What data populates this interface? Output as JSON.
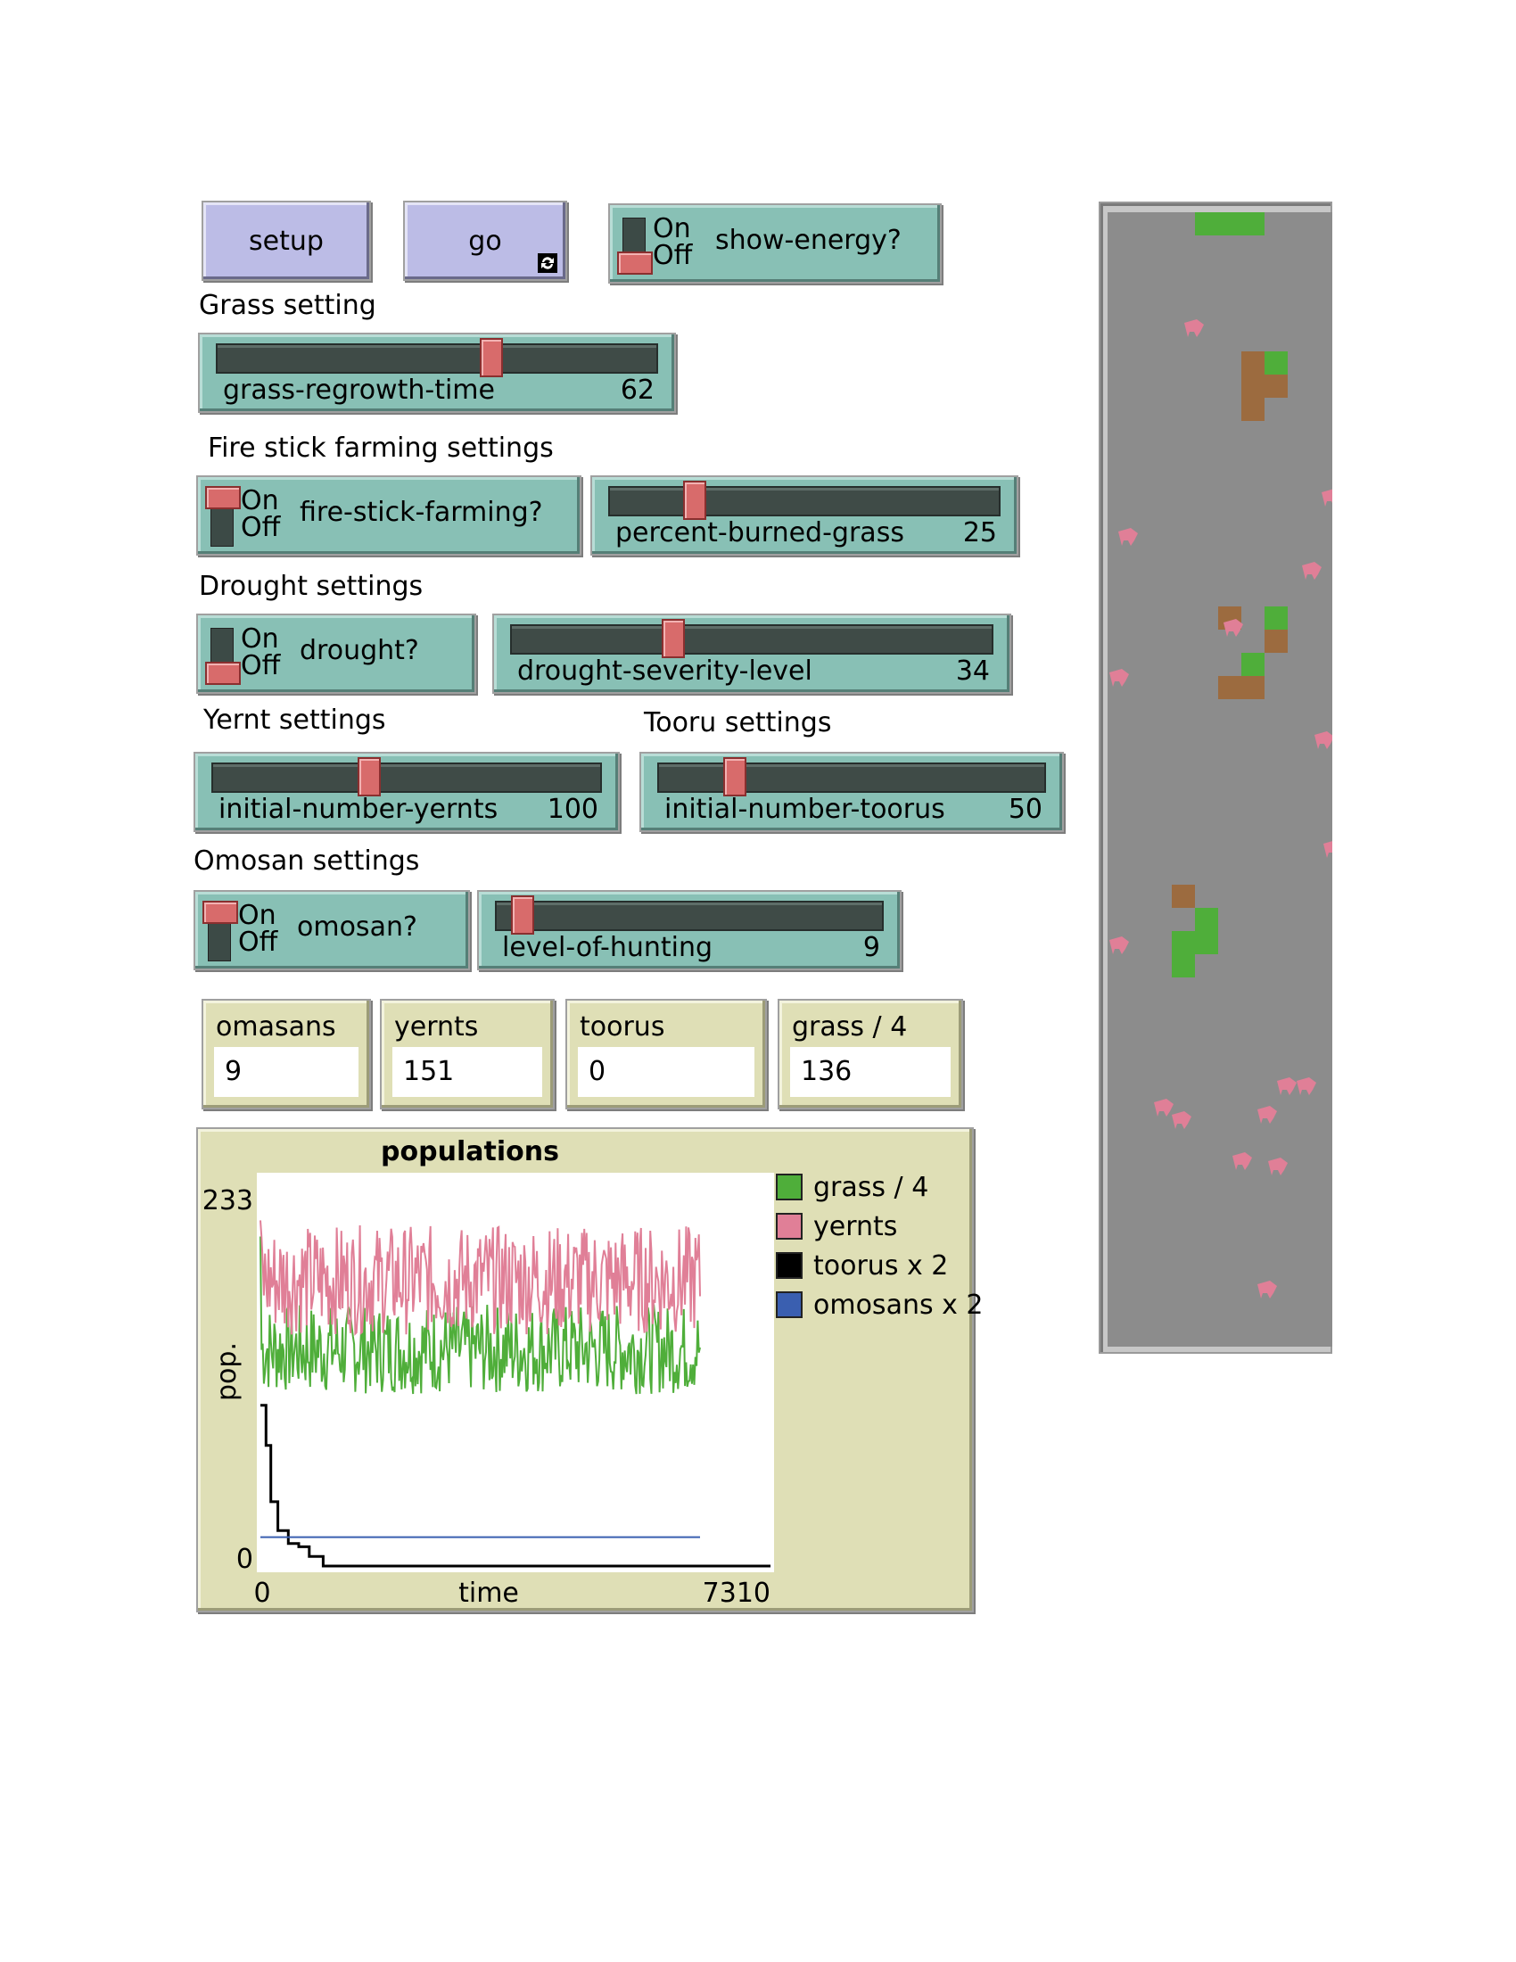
{
  "buttons": {
    "setup": "setup",
    "go": "go",
    "go_icon": "forever-loop-icon"
  },
  "switches": {
    "show_energy": {
      "label": "show-energy?",
      "on": "On",
      "off": "Off",
      "state": "off"
    },
    "fire_stick": {
      "label": "fire-stick-farming?",
      "on": "On",
      "off": "Off",
      "state": "on"
    },
    "drought": {
      "label": "drought?",
      "on": "On",
      "off": "Off",
      "state": "off"
    },
    "omosan": {
      "label": "omosan?",
      "on": "On",
      "off": "Off",
      "state": "on"
    }
  },
  "sections": {
    "grass": "Grass setting",
    "fire": "Fire stick farming settings",
    "drought": "Drought settings",
    "yernt": "Yernt settings",
    "tooru": "Tooru settings",
    "omosan": "Omosan settings"
  },
  "sliders": {
    "grass_regrowth": {
      "name": "grass-regrowth-time",
      "value": "62",
      "fraction": 0.62
    },
    "percent_burned": {
      "name": "percent-burned-grass",
      "value": "25",
      "fraction": 0.22
    },
    "drought_severity": {
      "name": "drought-severity-level",
      "value": "34",
      "fraction": 0.34
    },
    "initial_yernts": {
      "name": "initial-number-yernts",
      "value": "100",
      "fraction": 0.4
    },
    "initial_toorus": {
      "name": "initial-number-toorus",
      "value": "50",
      "fraction": 0.2
    },
    "level_hunting": {
      "name": "level-of-hunting",
      "value": "9",
      "fraction": 0.09
    }
  },
  "monitors": [
    {
      "label": "omasans",
      "value": "9"
    },
    {
      "label": "yernts",
      "value": "151"
    },
    {
      "label": "toorus",
      "value": "0"
    },
    {
      "label": "grass / 4",
      "value": "136"
    }
  ],
  "plot": {
    "title": "populations",
    "xlabel": "time",
    "ylabel": "pop.",
    "xmin_label": "0",
    "xmax_label": "7310",
    "ymin_label": "0",
    "ymax_label": "233",
    "legend": [
      {
        "name": "grass / 4",
        "color": "#4fae3a"
      },
      {
        "name": "yernts",
        "color": "#e07f97"
      },
      {
        "name": "toorus x 2",
        "color": "#000000"
      },
      {
        "name": "omosans x 2",
        "color": "#3a5fb0"
      }
    ]
  },
  "chart_data": {
    "type": "line",
    "title": "populations",
    "xlabel": "time",
    "ylabel": "pop.",
    "xlim": [
      0,
      7310
    ],
    "ylim": [
      0,
      233
    ],
    "grid": false,
    "legend_position": "right",
    "series": [
      {
        "name": "grass / 4",
        "color": "#4fae3a",
        "start": 205,
        "mean": 135,
        "amplitude": 28,
        "end_x": 6300
      },
      {
        "name": "yernts",
        "color": "#e07f97",
        "start": 215,
        "mean": 178,
        "amplitude": 34,
        "end_x": 6300
      },
      {
        "name": "toorus x 2",
        "color": "#000000",
        "x": [
          0,
          80,
          150,
          250,
          400,
          550,
          700,
          900,
          7310
        ],
        "y": [
          100,
          75,
          40,
          22,
          14,
          12,
          6,
          0,
          0
        ]
      },
      {
        "name": "omosans x 2",
        "color": "#3a5fb0",
        "x": [
          0,
          6300
        ],
        "y": [
          18,
          18
        ]
      }
    ]
  },
  "world": {
    "background": "#8c8c8c",
    "grass_color": "#4fae3a",
    "burned_color": "#9c6b3f",
    "agent_color": "#e07f97"
  }
}
